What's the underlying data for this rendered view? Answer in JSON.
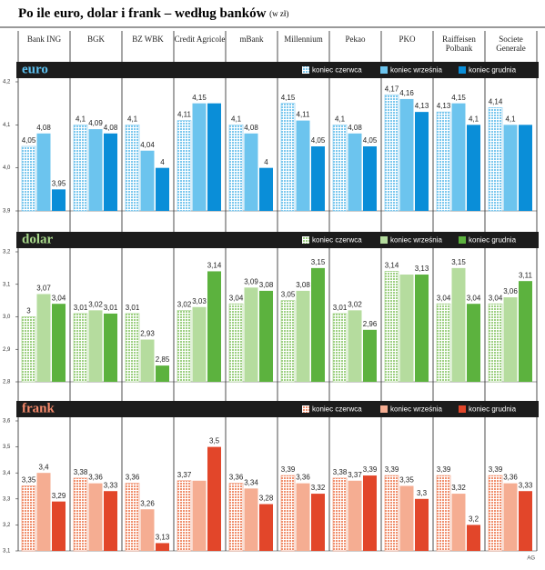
{
  "title": "Po ile euro, dolar i frank – według banków",
  "subtitle": "(w zł)",
  "credit": "AG",
  "chart_data": [
    {
      "type": "bar",
      "title": "euro",
      "title_color": "#5cc0f0",
      "categories": [
        "Bank ING",
        "BGK",
        "BZ WBK",
        "Credit Agricole",
        "mBank",
        "Millennium",
        "Pekao",
        "PKO",
        "Raiffeisen Polbank",
        "Societe Generale"
      ],
      "ylim": [
        3.9,
        4.2
      ],
      "yticks": [
        {
          "value": 3.9,
          "label": "3,9"
        },
        {
          "value": 4.0,
          "label": "4,0"
        },
        {
          "value": 4.1,
          "label": "4,1"
        },
        {
          "value": 4.2,
          "label": "4,2"
        }
      ],
      "series": [
        {
          "name": "koniec czerwca",
          "color": "#7cc8ee",
          "values": [
            4.05,
            4.1,
            4.1,
            4.11,
            4.1,
            4.15,
            4.1,
            4.17,
            4.13,
            4.14
          ],
          "value_labels": [
            "4,05",
            "4,1",
            "4,1",
            "4,11",
            "4,1",
            "4,15",
            "4,1",
            "4,17",
            "4,13",
            "4,14"
          ]
        },
        {
          "name": "koniec września",
          "color": "#6cc4ee",
          "values": [
            4.08,
            4.09,
            4.04,
            4.15,
            4.08,
            4.11,
            4.08,
            4.16,
            4.15,
            4.1
          ],
          "value_labels": [
            "4,08",
            "4,09",
            "4,04",
            "4,15",
            "4,08",
            "4,11",
            "4,08",
            "4,16",
            "4,15",
            "4,1"
          ]
        },
        {
          "name": "koniec grudnia",
          "color": "#0a8ed8",
          "values": [
            3.95,
            4.08,
            4,
            4.15,
            4,
            4.05,
            4.05,
            4.13,
            4.1,
            4.1
          ],
          "value_labels": [
            "3,95",
            "4,08",
            "4",
            null,
            "4",
            "4,05",
            "4,05",
            "4,13",
            "4,1",
            null
          ]
        }
      ]
    },
    {
      "type": "bar",
      "title": "dolar",
      "title_color": "#a8d88a",
      "ylim": [
        2.8,
        3.2
      ],
      "yticks": [
        {
          "value": 2.8,
          "label": "2,8"
        },
        {
          "value": 2.9,
          "label": "2,9"
        },
        {
          "value": 3.0,
          "label": "3,0"
        },
        {
          "value": 3.1,
          "label": "3,1"
        },
        {
          "value": 3.2,
          "label": "3,2"
        }
      ],
      "series": [
        {
          "name": "koniec czerwca",
          "color": "#9ed083",
          "values": [
            3,
            3.01,
            3.01,
            3.02,
            3.04,
            3.05,
            3.01,
            3.14,
            3.04,
            3.04
          ],
          "value_labels": [
            "3",
            "3,01",
            "3,01",
            "3,02",
            "3,04",
            "3,05",
            "3,01",
            "3,14",
            "3,04",
            "3,04"
          ]
        },
        {
          "name": "koniec września",
          "color": "#b5dc9e",
          "values": [
            3.07,
            3.02,
            2.93,
            3.03,
            3.09,
            3.08,
            3.02,
            3.13,
            3.15,
            3.06
          ],
          "value_labels": [
            "3,07",
            "3,02",
            "2,93",
            "3,03",
            "3,09",
            "3,08",
            "3,02",
            null,
            "3,15",
            "3,06"
          ]
        },
        {
          "name": "koniec grudnia",
          "color": "#5cb23e",
          "values": [
            3.04,
            3.01,
            2.85,
            3.14,
            3.08,
            3.15,
            2.96,
            3.13,
            3.04,
            3.11
          ],
          "value_labels": [
            "3,04",
            "3,01",
            "2,85",
            "3,14",
            "3,08",
            "3,15",
            "2,96",
            "3,13",
            "3,04",
            "3,11"
          ]
        }
      ]
    },
    {
      "type": "bar",
      "title": "frank",
      "title_color": "#f4886a",
      "ylim": [
        3.1,
        3.6
      ],
      "yticks": [
        {
          "value": 3.1,
          "label": "3,1"
        },
        {
          "value": 3.2,
          "label": "3,2"
        },
        {
          "value": 3.3,
          "label": "3,3"
        },
        {
          "value": 3.4,
          "label": "3,4"
        },
        {
          "value": 3.5,
          "label": "3,5"
        },
        {
          "value": 3.6,
          "label": "3,6"
        }
      ],
      "series": [
        {
          "name": "koniec czerwca",
          "color": "#f0906e",
          "values": [
            3.35,
            3.38,
            3.36,
            3.37,
            3.36,
            3.39,
            3.38,
            3.39,
            3.39,
            3.39
          ],
          "value_labels": [
            "3,35",
            "3,38",
            "3,36",
            "3,37",
            "3,36",
            "3,39",
            "3,38",
            "3,39",
            "3,39",
            "3,39"
          ]
        },
        {
          "name": "koniec września",
          "color": "#f5ad92",
          "values": [
            3.4,
            3.36,
            3.26,
            3.37,
            3.34,
            3.36,
            3.37,
            3.35,
            3.32,
            3.36
          ],
          "value_labels": [
            "3,4",
            "3,36",
            "3,26",
            null,
            "3,34",
            "3,36",
            "3,37",
            "3,35",
            "3,32",
            "3,36"
          ]
        },
        {
          "name": "koniec grudnia",
          "color": "#e2462a",
          "values": [
            3.29,
            3.33,
            3.13,
            3.5,
            3.28,
            3.32,
            3.39,
            3.3,
            3.2,
            3.33
          ],
          "value_labels": [
            "3,29",
            "3,33",
            "3,13",
            "3,5",
            "3,28",
            "3,32",
            "3,39",
            "3,3",
            "3,2",
            "3,33"
          ]
        }
      ]
    }
  ]
}
